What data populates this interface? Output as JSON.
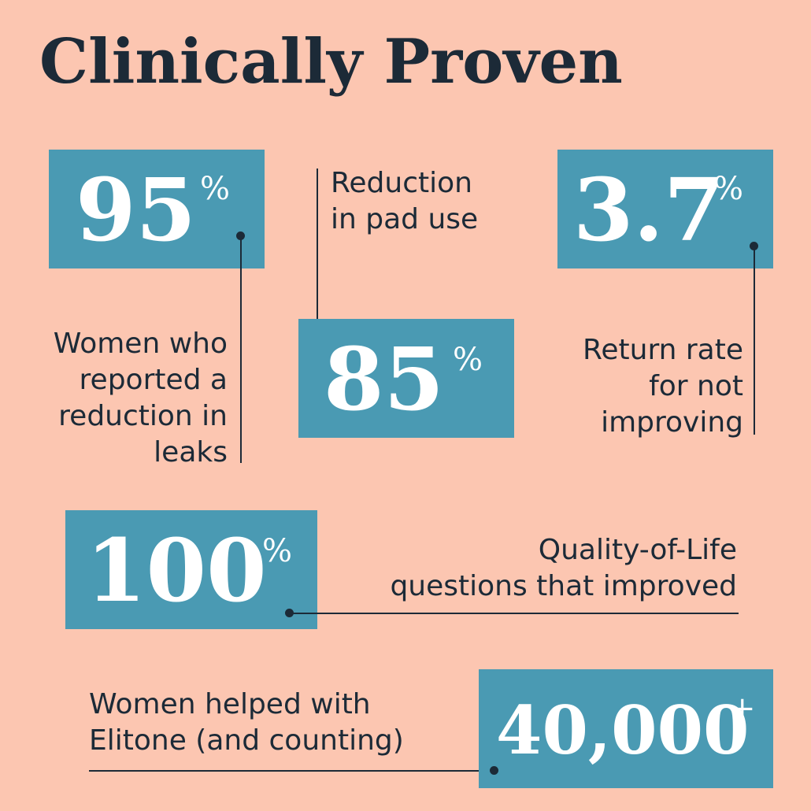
{
  "title": "Clinically Proven",
  "stats": [
    {
      "value": "95",
      "suffix": "%",
      "label_lines": [
        "Women who",
        "reported a",
        "reduction in",
        "leaks"
      ]
    },
    {
      "value": "85",
      "suffix": "%",
      "label_lines": [
        "Reduction",
        "in pad use"
      ]
    },
    {
      "value": "3.7",
      "suffix": "%",
      "label_lines": [
        "Return rate",
        "for not",
        "improving"
      ]
    },
    {
      "value": "100",
      "suffix": "%",
      "label_lines": [
        "Quality-of-Life",
        "questions that improved"
      ]
    },
    {
      "value": "40,000",
      "suffix": "+",
      "label_lines": [
        "Women helped with",
        "Elitone (and counting)"
      ]
    }
  ],
  "colors": {
    "background": "#fcc6b1",
    "box": "#4a9ab3",
    "text": "#1c2a37",
    "number": "#ffffff"
  }
}
